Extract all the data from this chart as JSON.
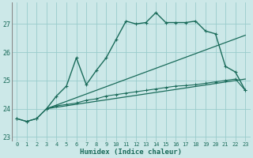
{
  "xlabel": "Humidex (Indice chaleur)",
  "bg_color": "#cce8e8",
  "grid_color": "#99cccc",
  "line_color": "#1a6b5a",
  "tick_color": "#1a6b5a",
  "border_color": "#888888",
  "xlim": [
    -0.5,
    23.5
  ],
  "ylim": [
    22.85,
    27.75
  ],
  "yticks": [
    23,
    24,
    25,
    26,
    27
  ],
  "xticks": [
    0,
    1,
    2,
    3,
    4,
    5,
    6,
    7,
    8,
    9,
    10,
    11,
    12,
    13,
    14,
    15,
    16,
    17,
    18,
    19,
    20,
    21,
    22,
    23
  ],
  "line1_x": [
    0,
    1,
    2,
    3,
    4,
    5,
    6,
    7,
    8,
    9,
    10,
    11,
    12,
    13,
    14,
    15,
    16,
    17,
    18,
    19,
    20,
    21,
    22,
    23
  ],
  "line1_y": [
    23.65,
    23.55,
    23.65,
    24.0,
    24.45,
    24.8,
    25.8,
    24.85,
    25.35,
    25.8,
    26.45,
    27.1,
    27.0,
    27.05,
    27.4,
    27.05,
    27.05,
    27.05,
    27.1,
    26.75,
    26.65,
    25.5,
    25.3,
    24.65
  ],
  "line2_x": [
    0,
    1,
    2,
    3,
    4,
    5,
    6,
    7,
    8,
    9,
    10,
    11,
    12,
    13,
    14,
    15,
    16,
    17,
    18,
    19,
    20,
    21,
    22,
    23
  ],
  "line2_y": [
    23.65,
    23.55,
    23.65,
    24.0,
    24.1,
    24.15,
    24.2,
    24.3,
    24.35,
    24.45,
    24.5,
    24.55,
    24.6,
    24.65,
    24.7,
    24.75,
    24.8,
    24.82,
    24.85,
    24.9,
    24.95,
    25.0,
    25.05,
    24.65
  ],
  "line3_x": [
    3,
    23
  ],
  "line3_y": [
    24.0,
    26.6
  ],
  "line4_x": [
    3,
    23
  ],
  "line4_y": [
    24.0,
    25.05
  ]
}
